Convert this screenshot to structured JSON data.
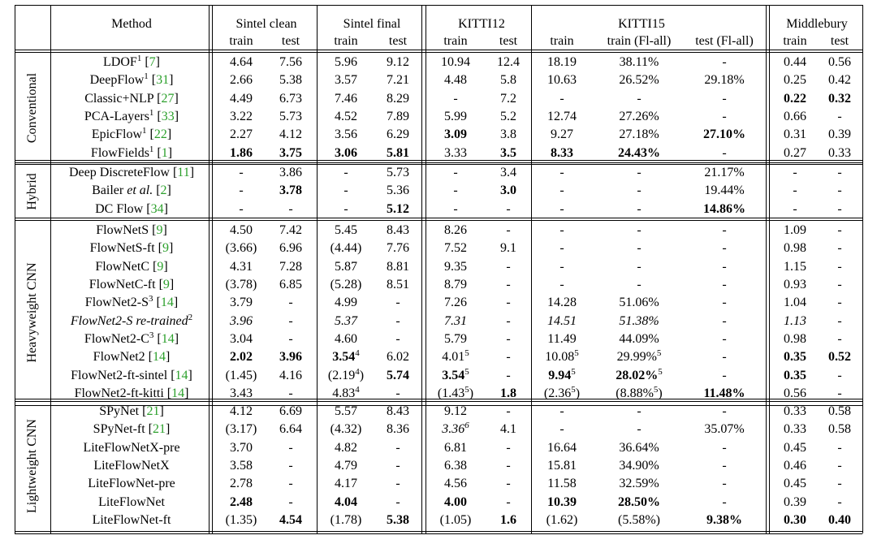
{
  "header": {
    "method": "Method",
    "groups": [
      "Sintel clean",
      "Sintel final",
      "KITTI12",
      "KITTI15",
      "Middlebury"
    ],
    "subcols": [
      "train",
      "test",
      "train",
      "test",
      "train",
      "test",
      "train",
      "train (Fl-all)",
      "test (Fl-all)",
      "train",
      "test"
    ]
  },
  "sections": [
    {
      "name": "Conventional",
      "rows": [
        {
          "method": "LDOF",
          "sup": "1",
          "ref": "7",
          "cells": [
            "4.64",
            "7.56",
            "5.96",
            "9.12",
            "10.94",
            "12.4",
            "18.19",
            "38.11%",
            "-",
            "0.44",
            "0.56"
          ]
        },
        {
          "method": "DeepFlow",
          "sup": "1",
          "ref": "31",
          "cells": [
            "2.66",
            "5.38",
            "3.57",
            "7.21",
            "4.48",
            "5.8",
            "10.63",
            "26.52%",
            "29.18%",
            "0.25",
            "0.42"
          ]
        },
        {
          "method": "Classic+NLP",
          "ref": "27",
          "cells": [
            "4.49",
            "6.73",
            "7.46",
            "8.29",
            "-",
            "7.2",
            "-",
            "-",
            "-",
            "0.22",
            "0.32"
          ],
          "bold": [
            9,
            10
          ]
        },
        {
          "method": "PCA-Layers",
          "sup": "1",
          "ref": "33",
          "cells": [
            "3.22",
            "5.73",
            "4.52",
            "7.89",
            "5.99",
            "5.2",
            "12.74",
            "27.26%",
            "-",
            "0.66",
            "-"
          ]
        },
        {
          "method": "EpicFlow",
          "sup": "1",
          "ref": "22",
          "cells": [
            "2.27",
            "4.12",
            "3.56",
            "6.29",
            "3.09",
            "3.8",
            "9.27",
            "27.18%",
            "27.10%",
            "0.31",
            "0.39"
          ],
          "bold": [
            4,
            8
          ]
        },
        {
          "method": "FlowFields",
          "sup": "1",
          "ref": "1",
          "cells": [
            "1.86",
            "3.75",
            "3.06",
            "5.81",
            "3.33",
            "3.5",
            "8.33",
            "24.43%",
            "-",
            "0.27",
            "0.33"
          ],
          "bold": [
            0,
            1,
            2,
            3,
            5,
            6,
            7
          ]
        }
      ]
    },
    {
      "name": "Hybrid",
      "rows": [
        {
          "method": "Deep DiscreteFlow",
          "ref": "11",
          "cells": [
            "-",
            "3.86",
            "-",
            "5.73",
            "-",
            "3.4",
            "-",
            "-",
            "21.17%",
            "-",
            "-"
          ]
        },
        {
          "method": "Bailer",
          "etal": " et al.",
          "ref": "2",
          "cells": [
            "-",
            "3.78",
            "-",
            "5.36",
            "-",
            "3.0",
            "-",
            "-",
            "19.44%",
            "-",
            "-"
          ],
          "bold": [
            1,
            5
          ]
        },
        {
          "method": "DC Flow",
          "ref": "34",
          "cells": [
            "-",
            "-",
            "-",
            "5.12",
            "-",
            "-",
            "-",
            "-",
            "14.86%",
            "-",
            "-"
          ],
          "bold": [
            3,
            8
          ]
        }
      ]
    },
    {
      "name": "Heavyweight CNN",
      "rows": [
        {
          "method": "FlowNetS",
          "ref": "9",
          "cells": [
            "4.50",
            "7.42",
            "5.45",
            "8.43",
            "8.26",
            "-",
            "-",
            "-",
            "-",
            "1.09",
            "-"
          ]
        },
        {
          "method": "FlowNetS-ft",
          "ref": "9",
          "cells": [
            "(3.66)",
            "6.96",
            "(4.44)",
            "7.76",
            "7.52",
            "9.1",
            "-",
            "-",
            "-",
            "0.98",
            "-"
          ]
        },
        {
          "method": "FlowNetC",
          "ref": "9",
          "cells": [
            "4.31",
            "7.28",
            "5.87",
            "8.81",
            "9.35",
            "-",
            "-",
            "-",
            "-",
            "1.15",
            "-"
          ]
        },
        {
          "method": "FlowNetC-ft",
          "ref": "9",
          "cells": [
            "(3.78)",
            "6.85",
            "(5.28)",
            "8.51",
            "8.79",
            "-",
            "-",
            "-",
            "-",
            "0.93",
            "-"
          ]
        },
        {
          "method": "FlowNet2-S",
          "sup": "3",
          "ref": "14",
          "cells": [
            "3.79",
            "-",
            "4.99",
            "-",
            "7.26",
            "-",
            "14.28",
            "51.06%",
            "-",
            "1.04",
            "-"
          ]
        },
        {
          "method": "FlowNet2-S re-trained",
          "sup": "2",
          "italic": true,
          "cells": [
            "3.96",
            "-",
            "5.37",
            "-",
            "7.31",
            "-",
            "14.51",
            "51.38%",
            "-",
            "1.13",
            "-"
          ],
          "italicCells": [
            0,
            2,
            4,
            6,
            7,
            9
          ]
        },
        {
          "method": "FlowNet2-C",
          "sup": "3",
          "ref": "14",
          "cells": [
            "3.04",
            "-",
            "4.60",
            "-",
            "5.79",
            "-",
            "11.49",
            "44.09%",
            "-",
            "0.98",
            "-"
          ]
        },
        {
          "method": "FlowNet2",
          "ref": "14",
          "cells": [
            "2.02",
            "3.96",
            "3.54",
            "6.02",
            "4.01",
            "-",
            "10.08",
            "29.99%",
            "-",
            "0.35",
            "0.52"
          ],
          "bold": [
            0,
            1,
            2,
            9,
            10
          ],
          "cellSup": {
            "2": "4",
            "4": "5",
            "6": "5",
            "7": "5"
          }
        },
        {
          "method": "FlowNet2-ft-sintel",
          "ref": "14",
          "cells": [
            "(1.45)",
            "4.16",
            "(2.19",
            "5.74",
            "3.54",
            "-",
            "9.94",
            "28.02%",
            "-",
            "0.35",
            "-"
          ],
          "bold": [
            3,
            4,
            6,
            7,
            9
          ],
          "cellSup": {
            "2": "4",
            "4": "5",
            "6": "5",
            "7": "5"
          },
          "cellClose": {
            "2": ")"
          }
        },
        {
          "method": "FlowNet2-ft-kitti",
          "ref": "14",
          "cells": [
            "3.43",
            "-",
            "4.83",
            "-",
            "(1.43",
            "1.8",
            "(2.36",
            "(8.88%",
            "11.48%",
            "0.56",
            "-"
          ],
          "bold": [
            5,
            8
          ],
          "cellSup": {
            "2": "4",
            "4": "5",
            "6": "5",
            "7": "5"
          },
          "cellClose": {
            "4": ")",
            "6": ")",
            "7": ")"
          }
        }
      ]
    },
    {
      "name": "Lightweight CNN",
      "rows": [
        {
          "method": "SPyNet",
          "ref": "21",
          "cells": [
            "4.12",
            "6.69",
            "5.57",
            "8.43",
            "9.12",
            "-",
            "-",
            "-",
            "-",
            "0.33",
            "0.58"
          ]
        },
        {
          "method": "SPyNet-ft",
          "ref": "21",
          "cells": [
            "(3.17)",
            "6.64",
            "(4.32)",
            "8.36",
            "3.36",
            "4.1",
            "-",
            "-",
            "35.07%",
            "0.33",
            "0.58"
          ],
          "italicCells": [
            4
          ],
          "cellSup": {
            "4": "6"
          }
        },
        {
          "method": "LiteFlowNetX-pre",
          "cells": [
            "3.70",
            "-",
            "4.82",
            "-",
            "6.81",
            "-",
            "16.64",
            "36.64%",
            "-",
            "0.45",
            "-"
          ]
        },
        {
          "method": "LiteFlowNetX",
          "cells": [
            "3.58",
            "-",
            "4.79",
            "-",
            "6.38",
            "-",
            "15.81",
            "34.90%",
            "-",
            "0.46",
            "-"
          ]
        },
        {
          "method": "LiteFlowNet-pre",
          "cells": [
            "2.78",
            "-",
            "4.17",
            "-",
            "4.56",
            "-",
            "11.58",
            "32.59%",
            "-",
            "0.45",
            "-"
          ]
        },
        {
          "method": "LiteFlowNet",
          "cells": [
            "2.48",
            "-",
            "4.04",
            "-",
            "4.00",
            "-",
            "10.39",
            "28.50%",
            "-",
            "0.39",
            "-"
          ],
          "bold": [
            0,
            2,
            4,
            6,
            7
          ]
        },
        {
          "method": "LiteFlowNet-ft",
          "cells": [
            "(1.35)",
            "4.54",
            "(1.78)",
            "5.38",
            "(1.05)",
            "1.6",
            "(1.62)",
            "(5.58%)",
            "9.38%",
            "0.30",
            "0.40"
          ],
          "bold": [
            1,
            3,
            5,
            8,
            9,
            10
          ]
        }
      ]
    }
  ]
}
